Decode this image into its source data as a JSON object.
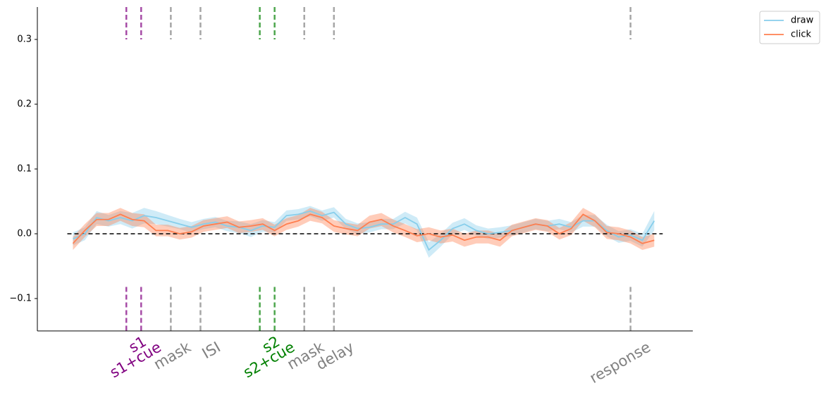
{
  "chart_data": {
    "type": "line",
    "xlim": [
      -1.5,
      9.55
    ],
    "ylim": [
      -0.15,
      0.35
    ],
    "yticks": [
      {
        "value": -0.1,
        "label": "−0.1"
      },
      {
        "value": 0,
        "label": "0.0"
      },
      0.1,
      0.2,
      0.3
    ],
    "reference_line": 0,
    "legend": "upper right",
    "x": [
      -0.9,
      -0.7,
      -0.5,
      -0.3,
      -0.1,
      0.1,
      0.3,
      0.5,
      0.7,
      0.9,
      1.1,
      1.3,
      1.5,
      1.7,
      1.9,
      2.1,
      2.3,
      2.5,
      2.7,
      2.9,
      3.1,
      3.3,
      3.5,
      3.7,
      3.9,
      4.1,
      4.3,
      4.5,
      4.7,
      4.9,
      5.1,
      5.3,
      5.5,
      5.7,
      5.9,
      6.1,
      6.3,
      6.5,
      6.7,
      6.9,
      7.1,
      7.3,
      7.5,
      7.7,
      7.9,
      8.1,
      8.3,
      8.5,
      8.7,
      8.9
    ],
    "series": [
      {
        "name": "draw",
        "color": "#87ceeb",
        "values": [
          -0.008,
          0.0,
          0.025,
          0.02,
          0.025,
          0.02,
          0.028,
          0.025,
          0.02,
          0.015,
          0.01,
          0.015,
          0.018,
          0.012,
          0.01,
          0.005,
          0.012,
          0.01,
          0.028,
          0.03,
          0.035,
          0.028,
          0.033,
          0.015,
          0.008,
          0.01,
          0.015,
          0.015,
          0.025,
          0.015,
          -0.025,
          -0.01,
          0.008,
          0.015,
          0.005,
          0.0,
          0.002,
          0.005,
          0.01,
          0.015,
          0.012,
          0.015,
          0.01,
          0.02,
          0.02,
          0.005,
          -0.005,
          -0.002,
          -0.01,
          0.02
        ],
        "errors": [
          0.01,
          0.01,
          0.01,
          0.009,
          0.01,
          0.012,
          0.012,
          0.01,
          0.009,
          0.008,
          0.008,
          0.008,
          0.008,
          0.008,
          0.009,
          0.01,
          0.009,
          0.008,
          0.008,
          0.008,
          0.008,
          0.008,
          0.008,
          0.008,
          0.008,
          0.008,
          0.008,
          0.008,
          0.009,
          0.01,
          0.012,
          0.01,
          0.009,
          0.009,
          0.008,
          0.008,
          0.008,
          0.008,
          0.008,
          0.008,
          0.008,
          0.008,
          0.008,
          0.009,
          0.009,
          0.009,
          0.009,
          0.009,
          0.01,
          0.015
        ]
      },
      {
        "name": "click",
        "color": "#ff7f50",
        "values": [
          -0.015,
          0.005,
          0.022,
          0.022,
          0.03,
          0.022,
          0.02,
          0.005,
          0.005,
          0.0,
          0.003,
          0.012,
          0.015,
          0.018,
          0.01,
          0.012,
          0.015,
          0.005,
          0.015,
          0.02,
          0.03,
          0.025,
          0.012,
          0.008,
          0.005,
          0.018,
          0.022,
          0.012,
          0.005,
          -0.003,
          0.0,
          -0.005,
          -0.002,
          -0.01,
          -0.005,
          -0.005,
          -0.01,
          0.005,
          0.01,
          0.015,
          0.012,
          0.0,
          0.008,
          0.03,
          0.02,
          0.002,
          0.0,
          -0.005,
          -0.015,
          -0.01
        ],
        "errors": [
          0.01,
          0.01,
          0.01,
          0.01,
          0.01,
          0.01,
          0.01,
          0.009,
          0.009,
          0.009,
          0.009,
          0.009,
          0.009,
          0.009,
          0.009,
          0.009,
          0.009,
          0.009,
          0.009,
          0.009,
          0.01,
          0.009,
          0.009,
          0.009,
          0.009,
          0.01,
          0.01,
          0.01,
          0.01,
          0.01,
          0.01,
          0.01,
          0.01,
          0.01,
          0.01,
          0.01,
          0.01,
          0.009,
          0.009,
          0.009,
          0.009,
          0.009,
          0.01,
          0.01,
          0.01,
          0.01,
          0.01,
          0.01,
          0.01,
          0.01
        ]
      }
    ],
    "events": [
      {
        "x": 0,
        "label": "s1",
        "color": "#800080"
      },
      {
        "x": 0.25,
        "label": "s1+cue",
        "color": "#800080"
      },
      {
        "x": 0.75,
        "label": "mask",
        "color": "#808080"
      },
      {
        "x": 1.25,
        "label": "ISI",
        "color": "#808080"
      },
      {
        "x": 2.25,
        "label": "s2",
        "color": "#008000"
      },
      {
        "x": 2.5,
        "label": "s2+cue",
        "color": "#008000"
      },
      {
        "x": 3.0,
        "label": "mask",
        "color": "#808080"
      },
      {
        "x": 3.5,
        "label": "delay",
        "color": "#808080"
      },
      {
        "x": 8.5,
        "label": "response",
        "color": "#808080"
      }
    ]
  }
}
